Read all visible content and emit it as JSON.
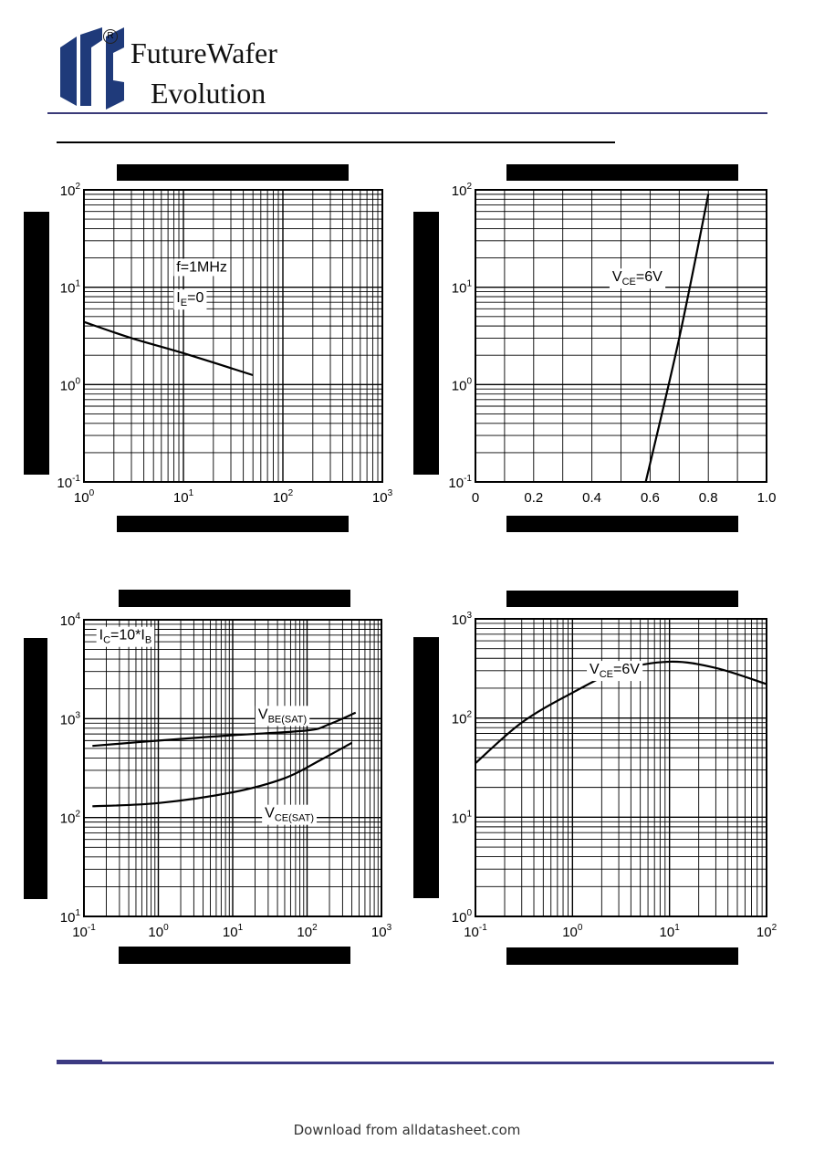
{
  "header": {
    "brand_line1": "FutureWafer",
    "brand_line2": "Evolution",
    "registered_mark": "R",
    "logo_icon": "futurewafer-logo-icon",
    "brand_color": "#1f3a7a"
  },
  "footer": {
    "text": "Download from alldatasheet.com"
  },
  "chart_data": [
    {
      "type": "line",
      "x_scale": "log",
      "y_scale": "log",
      "xlim": [
        1,
        1000
      ],
      "ylim": [
        0.1,
        100
      ],
      "x_ticks": [
        1,
        10,
        100,
        1000
      ],
      "y_ticks": [
        0.1,
        1,
        10,
        100
      ],
      "x_tick_labels": [
        {
          "b": "10",
          "e": "0"
        },
        {
          "b": "10",
          "e": "1"
        },
        {
          "b": "10",
          "e": "2"
        },
        {
          "b": "10",
          "e": "3"
        }
      ],
      "y_tick_labels": [
        {
          "b": "10",
          "e": "-1"
        },
        {
          "b": "10",
          "e": "0"
        },
        {
          "b": "10",
          "e": "1"
        },
        {
          "b": "10",
          "e": "2"
        }
      ],
      "grid": true,
      "series": [
        {
          "x": [
            1,
            3,
            10,
            50
          ],
          "y": [
            4.4,
            3.0,
            2.1,
            1.25
          ]
        }
      ],
      "annotations": [
        {
          "x": 8.5,
          "y": 14.5,
          "runs": [
            {
              "t": "f=1MHz"
            }
          ]
        },
        {
          "x": 8.5,
          "y": 7.0,
          "runs": [
            {
              "t": "I"
            },
            {
              "t": "E",
              "sub": true
            },
            {
              "t": "=0"
            }
          ]
        }
      ]
    },
    {
      "type": "line",
      "x_scale": "linear",
      "y_scale": "log",
      "xlim": [
        0,
        1.0
      ],
      "ylim": [
        0.1,
        100
      ],
      "x_ticks": [
        0,
        0.2,
        0.4,
        0.6,
        0.8,
        1.0
      ],
      "x_tick_labels": [
        {
          "b": "0"
        },
        {
          "b": "0.2"
        },
        {
          "b": "0.4"
        },
        {
          "b": "0.6"
        },
        {
          "b": "0.8"
        },
        {
          "b": "1.0"
        }
      ],
      "y_ticks": [
        0.1,
        1,
        10,
        100
      ],
      "y_tick_labels": [
        {
          "b": "10",
          "e": "-1"
        },
        {
          "b": "10",
          "e": "0"
        },
        {
          "b": "10",
          "e": "1"
        },
        {
          "b": "10",
          "e": "2"
        }
      ],
      "grid": true,
      "series": [
        {
          "x": [
            0.585,
            0.7,
            0.8
          ],
          "y": [
            0.1,
            3.0,
            90
          ]
        }
      ],
      "annotations": [
        {
          "x": 0.47,
          "y": 11.5,
          "runs": [
            {
              "t": "V"
            },
            {
              "t": "CE",
              "sub": true
            },
            {
              "t": "=6V"
            }
          ]
        }
      ]
    },
    {
      "type": "line",
      "x_scale": "log",
      "y_scale": "log",
      "xlim": [
        0.1,
        1000
      ],
      "ylim": [
        10,
        10000
      ],
      "x_ticks": [
        0.1,
        1,
        10,
        100,
        1000
      ],
      "y_ticks": [
        10,
        100,
        1000,
        10000
      ],
      "x_tick_labels": [
        {
          "b": "10",
          "e": "-1"
        },
        {
          "b": "10",
          "e": "0"
        },
        {
          "b": "10",
          "e": "1"
        },
        {
          "b": "10",
          "e": "2"
        },
        {
          "b": "10",
          "e": "3"
        }
      ],
      "y_tick_labels": [
        {
          "b": "10",
          "e": "1"
        },
        {
          "b": "10",
          "e": "2"
        },
        {
          "b": "10",
          "e": "3"
        },
        {
          "b": "10",
          "e": "4"
        }
      ],
      "grid": true,
      "series": [
        {
          "x": [
            0.13,
            1,
            10,
            100,
            200,
            450
          ],
          "y": [
            530,
            600,
            680,
            760,
            880,
            1150
          ]
        },
        {
          "x": [
            0.13,
            1,
            10,
            50,
            150,
            400
          ],
          "y": [
            130,
            140,
            180,
            250,
            380,
            570
          ]
        }
      ],
      "annotations": [
        {
          "x": 0.16,
          "y": 6300,
          "runs": [
            {
              "t": "I"
            },
            {
              "t": "C",
              "sub": true
            },
            {
              "t": "=10*I"
            },
            {
              "t": "B",
              "sub": true
            }
          ]
        },
        {
          "x": 22,
          "y": 1000,
          "runs": [
            {
              "t": "V"
            },
            {
              "t": "BE(SAT)",
              "sub": true
            }
          ]
        },
        {
          "x": 27,
          "y": 100,
          "runs": [
            {
              "t": "V"
            },
            {
              "t": "CE(SAT)",
              "sub": true
            }
          ]
        }
      ]
    },
    {
      "type": "line",
      "x_scale": "log",
      "y_scale": "log",
      "xlim": [
        0.1,
        100
      ],
      "ylim": [
        1,
        1000
      ],
      "x_ticks": [
        0.1,
        1,
        10,
        100
      ],
      "y_ticks": [
        1,
        10,
        100,
        1000
      ],
      "x_tick_labels": [
        {
          "b": "10",
          "e": "-1"
        },
        {
          "b": "10",
          "e": "0"
        },
        {
          "b": "10",
          "e": "1"
        },
        {
          "b": "10",
          "e": "2"
        }
      ],
      "y_tick_labels": [
        {
          "b": "10",
          "e": "0"
        },
        {
          "b": "10",
          "e": "1"
        },
        {
          "b": "10",
          "e": "2"
        },
        {
          "b": "10",
          "e": "3"
        }
      ],
      "grid": true,
      "series": [
        {
          "x": [
            0.1,
            0.3,
            1,
            3,
            10,
            30,
            100
          ],
          "y": [
            35,
            90,
            180,
            300,
            370,
            320,
            220
          ]
        }
      ],
      "annotations": [
        {
          "x": 1.5,
          "y": 280,
          "runs": [
            {
              "t": "V"
            },
            {
              "t": "CE",
              "sub": true
            },
            {
              "t": "=6V"
            }
          ]
        }
      ]
    }
  ]
}
